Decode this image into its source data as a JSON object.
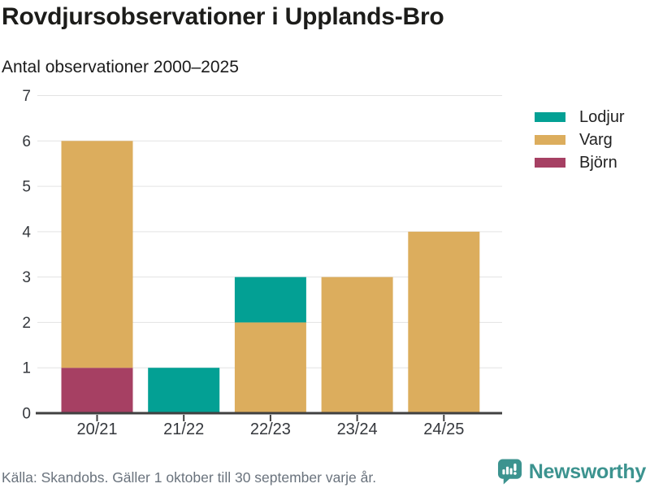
{
  "chart_data": {
    "type": "bar",
    "stacked": true,
    "title": "Rovdjursobservationer i Upplands-Bro",
    "subtitle": "Antal observationer 2000–2025",
    "categories": [
      "20/21",
      "21/22",
      "22/23",
      "23/24",
      "24/25"
    ],
    "series": [
      {
        "name": "Lodjur",
        "color": "#03A094",
        "values": [
          0,
          1,
          1,
          0,
          0
        ]
      },
      {
        "name": "Varg",
        "color": "#DCAD5D",
        "values": [
          5,
          0,
          2,
          3,
          4
        ]
      },
      {
        "name": "Björn",
        "color": "#A64063",
        "values": [
          1,
          0,
          0,
          0,
          0
        ]
      }
    ],
    "stack_order_bottom_to_top": [
      "Björn",
      "Varg",
      "Lodjur"
    ],
    "totals": [
      6,
      1,
      3,
      3,
      4
    ],
    "xlabel": "",
    "ylabel": "",
    "ylim": [
      0,
      7
    ],
    "y_ticks": [
      0,
      1,
      2,
      3,
      4,
      5,
      6,
      7
    ],
    "grid": true,
    "legend_position": "right"
  },
  "footer": {
    "source": "Källa: Skandobs. Gäller 1 oktober till 30 september varje år.",
    "brand": "Newsworthy"
  },
  "colors": {
    "grid": "#e3e3e3",
    "axis": "#404040",
    "brand_teal": "#3c938f"
  }
}
